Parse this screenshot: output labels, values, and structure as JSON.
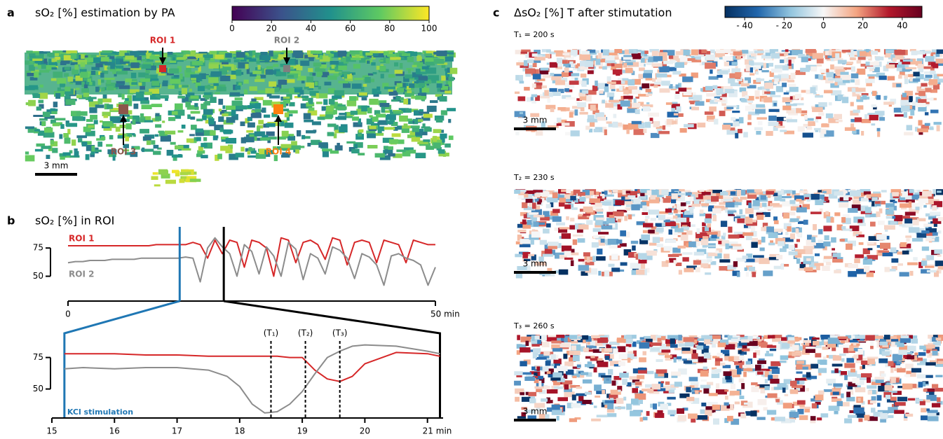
{
  "chart_data": [
    {
      "type": "image",
      "panel": "a",
      "title": "sO₂ [%] estimation by PA",
      "colormap": "viridis",
      "clim": [
        0,
        100
      ],
      "cticks": [
        0,
        20,
        40,
        60,
        80,
        100
      ],
      "scalebar": "3 mm",
      "rois": [
        {
          "label": "ROI 1",
          "color": "#d62728"
        },
        {
          "label": "ROI 2",
          "color": "#7f7f7f"
        },
        {
          "label": "ROI 3",
          "color": "#8c564b"
        },
        {
          "label": "ROI 4",
          "color": "#ff7f0e"
        }
      ]
    },
    {
      "type": "line",
      "panel": "b",
      "title": "sO₂ [%] in ROI",
      "x": [
        0,
        1,
        2,
        3,
        4,
        5,
        6,
        7,
        8,
        9,
        10,
        11,
        12,
        13,
        14,
        15,
        16,
        17,
        18,
        19,
        20,
        21,
        22,
        23,
        24,
        25,
        26,
        27,
        28,
        29,
        30,
        31,
        32,
        33,
        34,
        35,
        36,
        37,
        38,
        39,
        40,
        41,
        42,
        43,
        44,
        45,
        46,
        47,
        48,
        49,
        50
      ],
      "series": [
        {
          "name": "ROI 1",
          "color": "#d62728",
          "values": [
            77,
            77,
            77,
            77,
            77,
            77,
            77,
            77,
            77,
            77,
            77,
            77,
            78,
            78,
            78,
            78,
            78,
            80,
            78,
            66,
            82,
            70,
            82,
            80,
            58,
            82,
            80,
            75,
            50,
            84,
            82,
            62,
            80,
            82,
            78,
            65,
            84,
            82,
            60,
            80,
            82,
            80,
            62,
            82,
            80,
            78,
            62,
            82,
            80,
            78,
            78
          ]
        },
        {
          "name": "ROI 2",
          "color": "#8c8c8c",
          "values": [
            62,
            63,
            63,
            64,
            64,
            64,
            65,
            65,
            65,
            65,
            66,
            66,
            66,
            66,
            66,
            66,
            67,
            66,
            45,
            75,
            84,
            76,
            70,
            50,
            78,
            72,
            52,
            76,
            68,
            50,
            80,
            74,
            47,
            70,
            66,
            52,
            76,
            73,
            66,
            48,
            70,
            67,
            60,
            42,
            68,
            70,
            66,
            64,
            60,
            42,
            58
          ]
        }
      ],
      "xlim": [
        0,
        50
      ],
      "xticks": [
        0,
        {
          "value": 50,
          "label": "50 min"
        }
      ],
      "ylim": [
        28,
        95
      ],
      "yticks": [
        50,
        75
      ],
      "window": [
        15.2,
        21.2
      ],
      "window_colors": [
        "#1f77b4",
        "#000000"
      ]
    },
    {
      "type": "line",
      "x": [
        15.2,
        15.5,
        16,
        16.5,
        17,
        17.5,
        17.8,
        18,
        18.2,
        18.4,
        18.6,
        18.8,
        19,
        19.2,
        19.4,
        19.6,
        19.8,
        20,
        20.5,
        21,
        21.2
      ],
      "series": [
        {
          "color": "#d62728",
          "values": [
            78,
            78,
            78,
            77,
            77,
            76,
            76,
            76,
            76,
            76,
            76,
            75,
            75,
            65,
            58,
            56,
            60,
            70,
            79,
            78,
            76
          ]
        },
        {
          "color": "#8c8c8c",
          "values": [
            66,
            67,
            66,
            67,
            67,
            65,
            60,
            52,
            38,
            31,
            32,
            38,
            48,
            62,
            75,
            80,
            84,
            85,
            84,
            80,
            78
          ]
        }
      ],
      "xlim": [
        15,
        21.25
      ],
      "xticks": [
        15,
        16,
        17,
        18,
        19,
        20,
        {
          "value": 21,
          "label": "21 min"
        }
      ],
      "ylim": [
        27,
        92
      ],
      "yticks": [
        50,
        75
      ],
      "annotations": [
        {
          "x": 15.2,
          "label": "KCl stimulation",
          "color": "#1f77b4"
        },
        {
          "x": 18.5,
          "label": "(T₁)"
        },
        {
          "x": 19.05,
          "label": "(T₂)"
        },
        {
          "x": 19.6,
          "label": "(T₃)"
        }
      ]
    },
    {
      "type": "image",
      "panel": "c",
      "title": "ΔsO₂ [%] T after stimutation",
      "colormap": "RdBu_r",
      "clim": [
        -50,
        50
      ],
      "cticks": [
        {
          "value": -40,
          "label": "- 40"
        },
        {
          "value": -20,
          "label": "- 20"
        },
        0,
        20,
        40
      ],
      "frames": [
        {
          "label": "T₁ = 200 s",
          "scalebar": "3 mm"
        },
        {
          "label": "T₂ = 230 s",
          "scalebar": "3 mm"
        },
        {
          "label": "T₃ = 260 s",
          "scalebar": "3 mm"
        }
      ]
    }
  ]
}
